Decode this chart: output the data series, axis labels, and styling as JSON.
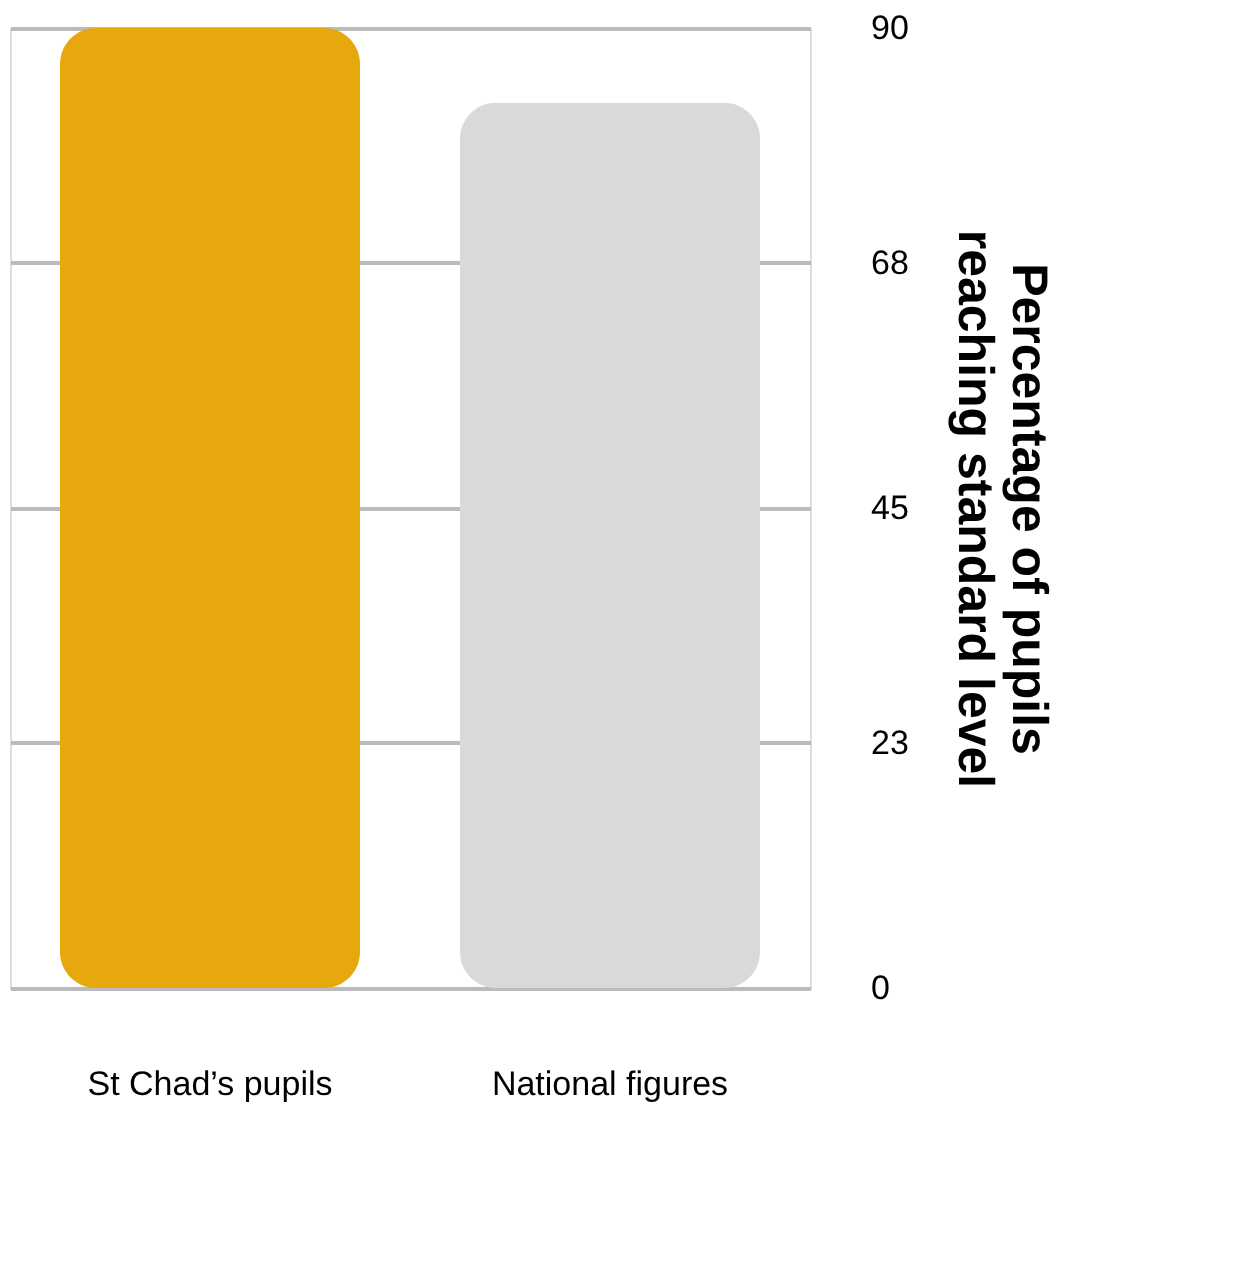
{
  "chart_data": {
    "type": "bar",
    "categories": [
      "St Chad’s pupils",
      "National figures"
    ],
    "values": [
      90,
      83
    ],
    "colors": [
      "#e6a80c",
      "#d9d9d9"
    ],
    "ylabel": "Percentage of pupils reaching standard level",
    "ylim": [
      0,
      90
    ],
    "yticks": [
      0,
      23,
      45,
      68,
      90
    ],
    "grid": "y"
  }
}
